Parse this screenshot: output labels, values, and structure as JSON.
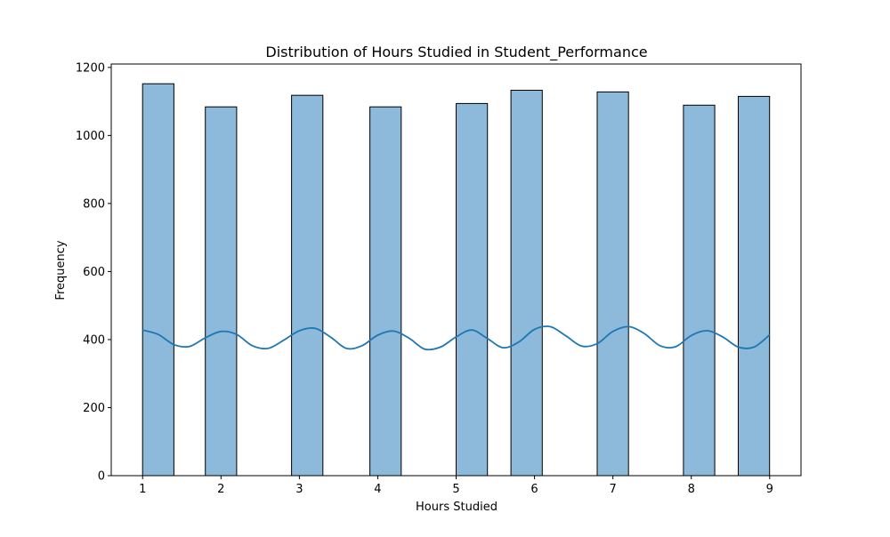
{
  "chart_data": {
    "type": "bar",
    "title": "Distribution of Hours Studied in Student_Performance",
    "xlabel": "Hours Studied",
    "ylabel": "Frequency",
    "xlim": [
      0.6,
      9.4
    ],
    "ylim": [
      0,
      1210
    ],
    "x_ticks": [
      1,
      2,
      3,
      4,
      5,
      6,
      7,
      8,
      9
    ],
    "y_ticks": [
      0,
      200,
      400,
      600,
      800,
      1000,
      1200
    ],
    "bins": [
      {
        "start": 1.0,
        "end": 1.4,
        "count": 1152
      },
      {
        "start": 1.8,
        "end": 2.2,
        "count": 1084
      },
      {
        "start": 2.9,
        "end": 3.3,
        "count": 1118
      },
      {
        "start": 3.9,
        "end": 4.3,
        "count": 1084
      },
      {
        "start": 5.0,
        "end": 5.4,
        "count": 1094
      },
      {
        "start": 5.7,
        "end": 6.1,
        "count": 1133
      },
      {
        "start": 6.8,
        "end": 7.2,
        "count": 1128
      },
      {
        "start": 7.9,
        "end": 8.3,
        "count": 1089
      },
      {
        "start": 8.6,
        "end": 9.0,
        "count": 1115
      }
    ],
    "kde": {
      "x": [
        1.0,
        1.2,
        1.4,
        1.6,
        1.8,
        2.0,
        2.2,
        2.4,
        2.6,
        2.8,
        3.0,
        3.2,
        3.4,
        3.6,
        3.8,
        4.0,
        4.2,
        4.4,
        4.6,
        4.8,
        5.0,
        5.2,
        5.4,
        5.6,
        5.8,
        6.0,
        6.2,
        6.4,
        6.6,
        6.8,
        7.0,
        7.2,
        7.4,
        7.6,
        7.8,
        8.0,
        8.2,
        8.4,
        8.6,
        8.8,
        9.0
      ],
      "y": [
        428,
        415,
        385,
        380,
        405,
        424,
        415,
        382,
        374,
        398,
        426,
        433,
        407,
        374,
        382,
        413,
        425,
        404,
        372,
        378,
        408,
        428,
        403,
        376,
        393,
        430,
        438,
        411,
        381,
        388,
        424,
        438,
        418,
        382,
        379,
        412,
        426,
        408,
        378,
        378,
        414
      ]
    },
    "bar_color": "#8db9da",
    "bar_edge_color": "#000000",
    "kde_color": "#1f77b4",
    "grid": false,
    "legend": "none"
  }
}
